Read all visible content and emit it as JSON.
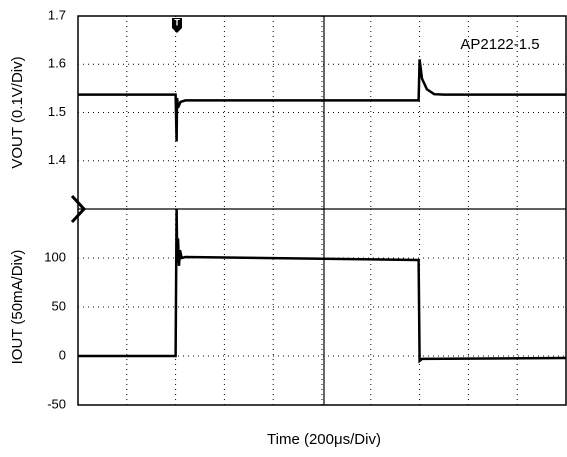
{
  "chart_data": [
    {
      "type": "line",
      "ylabel": "VOUT (0.1V/Div)",
      "annotation": "AP2122-1.5",
      "xlim": [
        0,
        2000
      ],
      "xticks": [
        0,
        200,
        400,
        600,
        800,
        1000,
        1200,
        1400,
        1600,
        1800,
        2000
      ],
      "ylim": [
        1.3,
        1.7
      ],
      "yticks": [
        1.4,
        1.5,
        1.6,
        1.7
      ],
      "grid": true,
      "color": "#000000",
      "x": [
        0,
        400,
        404,
        406,
        410,
        420,
        440,
        1390,
        1396,
        1400,
        1410,
        1430,
        1460,
        1500,
        2000
      ],
      "values": [
        1.537,
        1.537,
        1.44,
        1.53,
        1.51,
        1.522,
        1.525,
        1.525,
        1.525,
        1.61,
        1.57,
        1.548,
        1.538,
        1.537,
        1.537
      ]
    },
    {
      "type": "line",
      "ylabel": "IOUT (50mA/Div)",
      "xlabel": "Time (200μs/Div)",
      "xlim": [
        0,
        2000
      ],
      "xticks": [
        0,
        200,
        400,
        600,
        800,
        1000,
        1200,
        1400,
        1600,
        1800,
        2000
      ],
      "ylim": [
        -50,
        150
      ],
      "yticks": [
        -50,
        0,
        50,
        100
      ],
      "grid": true,
      "color": "#000000",
      "x": [
        0,
        400,
        404,
        407,
        410,
        414,
        418,
        425,
        440,
        1390,
        1396,
        1400,
        1410,
        2000
      ],
      "values": [
        0,
        0,
        150,
        95,
        120,
        92,
        108,
        100,
        101,
        98,
        98,
        -5,
        -3,
        -2
      ]
    }
  ]
}
